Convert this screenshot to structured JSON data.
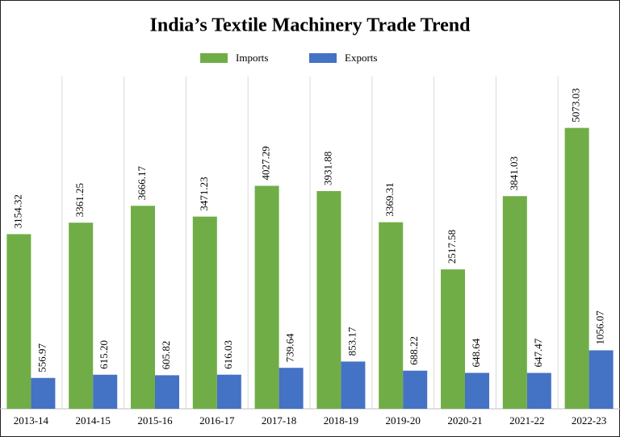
{
  "chart_data": {
    "type": "bar",
    "title": "India’s Textile Machinery Trade Trend",
    "categories": [
      "2013-14",
      "2014-15",
      "2015-16",
      "2016-17",
      "2017-18",
      "2018-19",
      "2019-20",
      "2020-21",
      "2021-22",
      "2022-23"
    ],
    "series": [
      {
        "name": "Imports",
        "color": "#70ad47",
        "values": [
          3154.32,
          3361.25,
          3666.17,
          3471.23,
          4027.29,
          3931.88,
          3369.31,
          2517.58,
          3841.03,
          5073.03
        ],
        "value_labels": [
          "3154.32",
          "3361.25",
          "3666.17",
          "3471.23",
          "4027.29",
          "3931.88",
          "3369.31",
          "2517.58",
          "3841.03",
          "5073.03"
        ]
      },
      {
        "name": "Exports",
        "color": "#4472c4",
        "values": [
          556.97,
          615.2,
          605.82,
          616.03,
          739.64,
          853.17,
          688.22,
          648.64,
          647.47,
          1056.07
        ],
        "value_labels": [
          "556.97",
          "615.20",
          "605.82",
          "616.03",
          "739.64",
          "853.17",
          "688.22",
          "648.64",
          "647.47",
          "1056.07"
        ]
      }
    ],
    "ylim": [
      0,
      6000
    ],
    "legend": "top"
  }
}
